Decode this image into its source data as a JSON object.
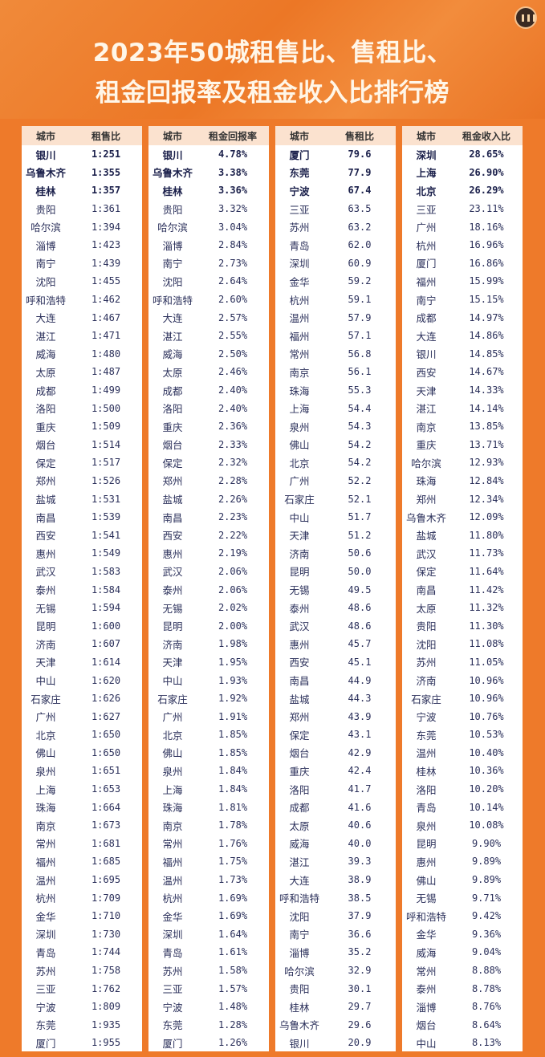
{
  "title": {
    "line1": "2023年50城租售比、售租比、",
    "line2": "租金回报率及租金收入比排行榜"
  },
  "tables": [
    {
      "headers": [
        "城市",
        "租售比"
      ],
      "rows": [
        [
          "银川",
          "1:251"
        ],
        [
          "乌鲁木齐",
          "1:355"
        ],
        [
          "桂林",
          "1:357"
        ],
        [
          "贵阳",
          "1:361"
        ],
        [
          "哈尔滨",
          "1:394"
        ],
        [
          "淄博",
          "1:423"
        ],
        [
          "南宁",
          "1:439"
        ],
        [
          "沈阳",
          "1:455"
        ],
        [
          "呼和浩特",
          "1:462"
        ],
        [
          "大连",
          "1:467"
        ],
        [
          "湛江",
          "1:471"
        ],
        [
          "威海",
          "1:480"
        ],
        [
          "太原",
          "1:487"
        ],
        [
          "成都",
          "1:499"
        ],
        [
          "洛阳",
          "1:500"
        ],
        [
          "重庆",
          "1:509"
        ],
        [
          "烟台",
          "1:514"
        ],
        [
          "保定",
          "1:517"
        ],
        [
          "郑州",
          "1:526"
        ],
        [
          "盐城",
          "1:531"
        ],
        [
          "南昌",
          "1:539"
        ],
        [
          "西安",
          "1:541"
        ],
        [
          "惠州",
          "1:549"
        ],
        [
          "武汉",
          "1:583"
        ],
        [
          "泰州",
          "1:584"
        ],
        [
          "无锡",
          "1:594"
        ],
        [
          "昆明",
          "1:600"
        ],
        [
          "济南",
          "1:607"
        ],
        [
          "天津",
          "1:614"
        ],
        [
          "中山",
          "1:620"
        ],
        [
          "石家庄",
          "1:626"
        ],
        [
          "广州",
          "1:627"
        ],
        [
          "北京",
          "1:650"
        ],
        [
          "佛山",
          "1:650"
        ],
        [
          "泉州",
          "1:651"
        ],
        [
          "上海",
          "1:653"
        ],
        [
          "珠海",
          "1:664"
        ],
        [
          "南京",
          "1:673"
        ],
        [
          "常州",
          "1:681"
        ],
        [
          "福州",
          "1:685"
        ],
        [
          "温州",
          "1:695"
        ],
        [
          "杭州",
          "1:709"
        ],
        [
          "金华",
          "1:710"
        ],
        [
          "深圳",
          "1:730"
        ],
        [
          "青岛",
          "1:744"
        ],
        [
          "苏州",
          "1:758"
        ],
        [
          "三亚",
          "1:762"
        ],
        [
          "宁波",
          "1:809"
        ],
        [
          "东莞",
          "1:935"
        ],
        [
          "厦门",
          "1:955"
        ]
      ]
    },
    {
      "headers": [
        "城市",
        "租金回报率"
      ],
      "rows": [
        [
          "银川",
          "4.78%"
        ],
        [
          "乌鲁木齐",
          "3.38%"
        ],
        [
          "桂林",
          "3.36%"
        ],
        [
          "贵阳",
          "3.32%"
        ],
        [
          "哈尔滨",
          "3.04%"
        ],
        [
          "淄博",
          "2.84%"
        ],
        [
          "南宁",
          "2.73%"
        ],
        [
          "沈阳",
          "2.64%"
        ],
        [
          "呼和浩特",
          "2.60%"
        ],
        [
          "大连",
          "2.57%"
        ],
        [
          "湛江",
          "2.55%"
        ],
        [
          "威海",
          "2.50%"
        ],
        [
          "太原",
          "2.46%"
        ],
        [
          "成都",
          "2.40%"
        ],
        [
          "洛阳",
          "2.40%"
        ],
        [
          "重庆",
          "2.36%"
        ],
        [
          "烟台",
          "2.33%"
        ],
        [
          "保定",
          "2.32%"
        ],
        [
          "郑州",
          "2.28%"
        ],
        [
          "盐城",
          "2.26%"
        ],
        [
          "南昌",
          "2.23%"
        ],
        [
          "西安",
          "2.22%"
        ],
        [
          "惠州",
          "2.19%"
        ],
        [
          "武汉",
          "2.06%"
        ],
        [
          "泰州",
          "2.06%"
        ],
        [
          "无锡",
          "2.02%"
        ],
        [
          "昆明",
          "2.00%"
        ],
        [
          "济南",
          "1.98%"
        ],
        [
          "天津",
          "1.95%"
        ],
        [
          "中山",
          "1.93%"
        ],
        [
          "石家庄",
          "1.92%"
        ],
        [
          "广州",
          "1.91%"
        ],
        [
          "北京",
          "1.85%"
        ],
        [
          "佛山",
          "1.85%"
        ],
        [
          "泉州",
          "1.84%"
        ],
        [
          "上海",
          "1.84%"
        ],
        [
          "珠海",
          "1.81%"
        ],
        [
          "南京",
          "1.78%"
        ],
        [
          "常州",
          "1.76%"
        ],
        [
          "福州",
          "1.75%"
        ],
        [
          "温州",
          "1.73%"
        ],
        [
          "杭州",
          "1.69%"
        ],
        [
          "金华",
          "1.69%"
        ],
        [
          "深圳",
          "1.64%"
        ],
        [
          "青岛",
          "1.61%"
        ],
        [
          "苏州",
          "1.58%"
        ],
        [
          "三亚",
          "1.57%"
        ],
        [
          "宁波",
          "1.48%"
        ],
        [
          "东莞",
          "1.28%"
        ],
        [
          "厦门",
          "1.26%"
        ]
      ]
    },
    {
      "headers": [
        "城市",
        "售租比"
      ],
      "rows": [
        [
          "厦门",
          "79.6"
        ],
        [
          "东莞",
          "77.9"
        ],
        [
          "宁波",
          "67.4"
        ],
        [
          "三亚",
          "63.5"
        ],
        [
          "苏州",
          "63.2"
        ],
        [
          "青岛",
          "62.0"
        ],
        [
          "深圳",
          "60.9"
        ],
        [
          "金华",
          "59.2"
        ],
        [
          "杭州",
          "59.1"
        ],
        [
          "温州",
          "57.9"
        ],
        [
          "福州",
          "57.1"
        ],
        [
          "常州",
          "56.8"
        ],
        [
          "南京",
          "56.1"
        ],
        [
          "珠海",
          "55.3"
        ],
        [
          "上海",
          "54.4"
        ],
        [
          "泉州",
          "54.3"
        ],
        [
          "佛山",
          "54.2"
        ],
        [
          "北京",
          "54.2"
        ],
        [
          "广州",
          "52.2"
        ],
        [
          "石家庄",
          "52.1"
        ],
        [
          "中山",
          "51.7"
        ],
        [
          "天津",
          "51.2"
        ],
        [
          "济南",
          "50.6"
        ],
        [
          "昆明",
          "50.0"
        ],
        [
          "无锡",
          "49.5"
        ],
        [
          "泰州",
          "48.6"
        ],
        [
          "武汉",
          "48.6"
        ],
        [
          "惠州",
          "45.7"
        ],
        [
          "西安",
          "45.1"
        ],
        [
          "南昌",
          "44.9"
        ],
        [
          "盐城",
          "44.3"
        ],
        [
          "郑州",
          "43.9"
        ],
        [
          "保定",
          "43.1"
        ],
        [
          "烟台",
          "42.9"
        ],
        [
          "重庆",
          "42.4"
        ],
        [
          "洛阳",
          "41.7"
        ],
        [
          "成都",
          "41.6"
        ],
        [
          "太原",
          "40.6"
        ],
        [
          "威海",
          "40.0"
        ],
        [
          "湛江",
          "39.3"
        ],
        [
          "大连",
          "38.9"
        ],
        [
          "呼和浩特",
          "38.5"
        ],
        [
          "沈阳",
          "37.9"
        ],
        [
          "南宁",
          "36.6"
        ],
        [
          "淄博",
          "35.2"
        ],
        [
          "哈尔滨",
          "32.9"
        ],
        [
          "贵阳",
          "30.1"
        ],
        [
          "桂林",
          "29.7"
        ],
        [
          "乌鲁木齐",
          "29.6"
        ],
        [
          "银川",
          "20.9"
        ]
      ]
    },
    {
      "headers": [
        "城市",
        "租金收入比"
      ],
      "rows": [
        [
          "深圳",
          "28.65%"
        ],
        [
          "上海",
          "26.90%"
        ],
        [
          "北京",
          "26.29%"
        ],
        [
          "三亚",
          "23.11%"
        ],
        [
          "广州",
          "18.16%"
        ],
        [
          "杭州",
          "16.96%"
        ],
        [
          "厦门",
          "16.86%"
        ],
        [
          "福州",
          "15.99%"
        ],
        [
          "南宁",
          "15.15%"
        ],
        [
          "成都",
          "14.97%"
        ],
        [
          "大连",
          "14.86%"
        ],
        [
          "银川",
          "14.85%"
        ],
        [
          "西安",
          "14.67%"
        ],
        [
          "天津",
          "14.33%"
        ],
        [
          "湛江",
          "14.14%"
        ],
        [
          "南京",
          "13.85%"
        ],
        [
          "重庆",
          "13.71%"
        ],
        [
          "哈尔滨",
          "12.93%"
        ],
        [
          "珠海",
          "12.84%"
        ],
        [
          "郑州",
          "12.34%"
        ],
        [
          "乌鲁木齐",
          "12.09%"
        ],
        [
          "盐城",
          "11.80%"
        ],
        [
          "武汉",
          "11.73%"
        ],
        [
          "保定",
          "11.64%"
        ],
        [
          "南昌",
          "11.42%"
        ],
        [
          "太原",
          "11.32%"
        ],
        [
          "贵阳",
          "11.30%"
        ],
        [
          "沈阳",
          "11.08%"
        ],
        [
          "苏州",
          "11.05%"
        ],
        [
          "济南",
          "10.96%"
        ],
        [
          "石家庄",
          "10.96%"
        ],
        [
          "宁波",
          "10.76%"
        ],
        [
          "东莞",
          "10.53%"
        ],
        [
          "温州",
          "10.40%"
        ],
        [
          "桂林",
          "10.36%"
        ],
        [
          "洛阳",
          "10.20%"
        ],
        [
          "青岛",
          "10.14%"
        ],
        [
          "泉州",
          "10.08%"
        ],
        [
          "昆明",
          "9.90%"
        ],
        [
          "惠州",
          "9.89%"
        ],
        [
          "佛山",
          "9.89%"
        ],
        [
          "无锡",
          "9.71%"
        ],
        [
          "呼和浩特",
          "9.42%"
        ],
        [
          "金华",
          "9.36%"
        ],
        [
          "威海",
          "9.04%"
        ],
        [
          "常州",
          "8.88%"
        ],
        [
          "泰州",
          "8.78%"
        ],
        [
          "淄博",
          "8.76%"
        ],
        [
          "烟台",
          "8.64%"
        ],
        [
          "中山",
          "8.13%"
        ]
      ]
    }
  ],
  "colors": {
    "background": "#ee7a2a",
    "header_row": "#fbe2cf",
    "text": "#2a2f5a"
  }
}
